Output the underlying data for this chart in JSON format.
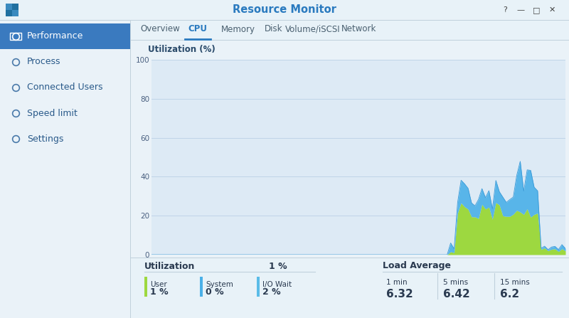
{
  "title": "Resource Monitor",
  "tab_items": [
    "Overview",
    "CPU",
    "Memory",
    "Disk",
    "Volume/iSCSI",
    "Network"
  ],
  "active_tab": "CPU",
  "sidebar_items": [
    "Performance",
    "Process",
    "Connected Users",
    "Speed limit",
    "Settings"
  ],
  "active_sidebar": "Performance",
  "chart_ylabel": "Utilization (%)",
  "chart_ylim": [
    0,
    100
  ],
  "chart_yticks": [
    0,
    20,
    40,
    60,
    80,
    100
  ],
  "chart_bg": "#ddeaf5",
  "chart_grid_color": "#c0d4e8",
  "user_color": "#9dd840",
  "system_color": "#4ab0e8",
  "window_bg": "#eaf2f8",
  "sidebar_bg": "#eaf2f8",
  "sidebar_active_bg": "#3a7abf",
  "title_color": "#2a7abf",
  "tab_active_color": "#2a7abf",
  "utilization_label": "Utilization",
  "utilization_value": "1 %",
  "user_label": "User",
  "user_pct": "1 %",
  "system_label": "System",
  "system_pct": "0 %",
  "iowait_label": "I/O Wait",
  "iowait_pct": "2 %",
  "load_avg_label": "Load Average",
  "load_avg_1min": "6.32",
  "load_avg_5min": "6.42",
  "load_avg_15min": "6.2",
  "load_labels": [
    "1 min",
    "5 mins",
    "15 mins"
  ],
  "n_points": 120,
  "titlebar_bg": "#e8f2f8",
  "separator_color": "#c0d0dc",
  "text_dark": "#2a3a50",
  "tab_text_color": "#4a6070"
}
